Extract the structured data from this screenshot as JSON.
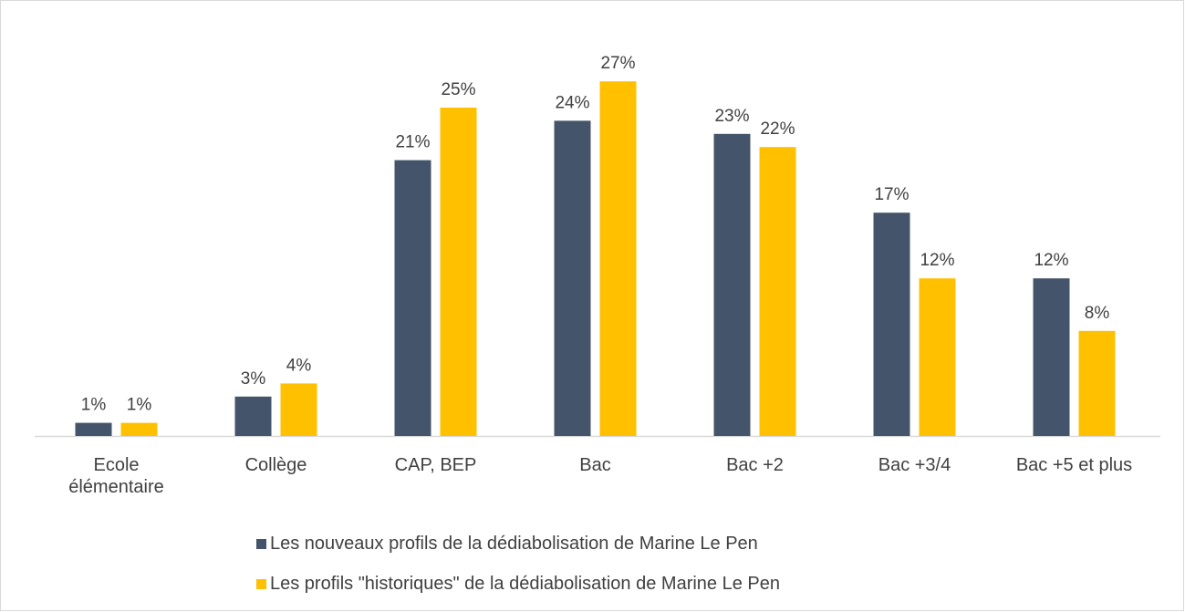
{
  "chart_data": {
    "type": "bar",
    "categories": [
      "Ecole élémentaire",
      "Collège",
      "CAP, BEP",
      "Bac",
      "Bac +2",
      "Bac +3/4",
      "Bac +5 et plus"
    ],
    "series": [
      {
        "name": "Les nouveaux profils de la dédiabolisation de Marine Le Pen",
        "color": "#44546a",
        "values": [
          1,
          3,
          21,
          24,
          23,
          17,
          12
        ],
        "value_labels": [
          "1%",
          "3%",
          "21%",
          "24%",
          "23%",
          "17%",
          "12%"
        ]
      },
      {
        "name": "Les profils \"historiques\" de la dédiabolisation de Marine Le Pen",
        "color": "#ffc000",
        "values": [
          1,
          4,
          25,
          27,
          22,
          12,
          8
        ],
        "value_labels": [
          "1%",
          "4%",
          "25%",
          "27%",
          "22%",
          "12%",
          "8%"
        ]
      }
    ],
    "legend": "bottom"
  }
}
